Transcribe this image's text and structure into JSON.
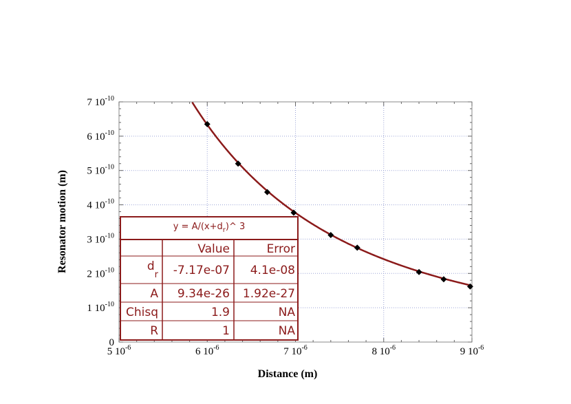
{
  "chart_data": {
    "type": "scatter",
    "xlabel": "Distance (m)",
    "ylabel": "Resonator motion (m)",
    "xlim": [
      5e-06,
      9e-06
    ],
    "ylim": [
      0,
      7e-10
    ],
    "grid": true,
    "x_ticks": [
      {
        "value": 5e-06,
        "mant": "5 10",
        "exp": "-6"
      },
      {
        "value": 6e-06,
        "mant": "6 10",
        "exp": "-6"
      },
      {
        "value": 7e-06,
        "mant": "7 10",
        "exp": "-6"
      },
      {
        "value": 8e-06,
        "mant": "8 10",
        "exp": "-6"
      },
      {
        "value": 9e-06,
        "mant": "9 10",
        "exp": "-6"
      }
    ],
    "y_ticks": [
      {
        "value": 0,
        "mant": "0",
        "exp": ""
      },
      {
        "value": 1e-10,
        "mant": "1 10",
        "exp": "-10"
      },
      {
        "value": 2e-10,
        "mant": "2 10",
        "exp": "-10"
      },
      {
        "value": 3e-10,
        "mant": "3 10",
        "exp": "-10"
      },
      {
        "value": 4e-10,
        "mant": "4 10",
        "exp": "-10"
      },
      {
        "value": 5e-10,
        "mant": "5 10",
        "exp": "-10"
      },
      {
        "value": 6e-10,
        "mant": "6 10",
        "exp": "-10"
      },
      {
        "value": 7e-10,
        "mant": "7 10",
        "exp": "-10"
      }
    ],
    "series": [
      {
        "marker": "diamond",
        "color": "#000000",
        "x": [
          6e-06,
          6.35e-06,
          6.68e-06,
          6.98e-06,
          7.4e-06,
          7.7e-06,
          8.4e-06,
          8.68e-06,
          8.98e-06
        ],
        "y": [
          6.35e-10,
          5.2e-10,
          4.37e-10,
          3.77e-10,
          3.12e-10,
          2.75e-10,
          2.04e-10,
          1.83e-10,
          1.62e-10
        ]
      }
    ],
    "fit": {
      "equation_prefix": "y = A/(x+d",
      "equation_sub": "r",
      "equation_suffix": ")^ 3",
      "function": "A/(x+d)^3",
      "A": 9.34e-26,
      "d": -7.17e-07,
      "color": "#8b1a1a",
      "headers": [
        "",
        "Value",
        "Error"
      ],
      "rows": [
        {
          "name": "d",
          "sub": "r",
          "value": "-7.17e-07",
          "error": "4.1e-08"
        },
        {
          "name": "A",
          "sub": "",
          "value": "9.34e-26",
          "error": "1.92e-27"
        },
        {
          "name": "Chisq",
          "sub": "",
          "value": "1.9",
          "error": "NA"
        },
        {
          "name": "R",
          "sub": "",
          "value": "1",
          "error": "NA"
        }
      ]
    }
  }
}
